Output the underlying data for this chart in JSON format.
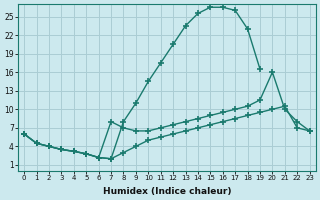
{
  "xlabel": "Humidex (Indice chaleur)",
  "ylabel": "",
  "bg_color": "#cce9ee",
  "line_color": "#1a7a6e",
  "grid_color": "#aacdd4",
  "xlim": [
    -0.5,
    23.5
  ],
  "ylim": [
    0,
    27
  ],
  "xticks": [
    0,
    1,
    2,
    3,
    4,
    5,
    6,
    7,
    8,
    9,
    10,
    11,
    12,
    13,
    14,
    15,
    16,
    17,
    18,
    19,
    20,
    21,
    22,
    23
  ],
  "yticks": [
    1,
    4,
    7,
    10,
    13,
    16,
    19,
    22,
    25
  ],
  "line1_x": [
    0,
    1,
    2,
    3,
    4,
    5,
    6,
    7,
    8,
    9,
    10,
    11,
    12,
    13,
    14,
    15,
    16,
    17,
    18,
    19,
    20,
    21,
    22,
    23
  ],
  "line1_y": [
    6.0,
    4.5,
    4.0,
    3.5,
    3.2,
    2.8,
    2.2,
    2.0,
    8.0,
    11.0,
    14.5,
    17.5,
    20.5,
    23.5,
    25.5,
    26.5,
    26.5,
    26.0,
    23.0,
    16.5,
    null,
    null,
    null,
    null
  ],
  "line2_x": [
    0,
    1,
    2,
    3,
    4,
    5,
    6,
    7,
    8,
    9,
    10,
    11,
    12,
    13,
    14,
    15,
    16,
    17,
    18,
    19,
    20,
    21,
    22,
    23
  ],
  "line2_y": [
    6.0,
    4.5,
    4.0,
    3.5,
    3.2,
    2.8,
    2.2,
    8.0,
    7.0,
    6.5,
    6.5,
    7.0,
    7.5,
    8.0,
    8.5,
    9.0,
    9.5,
    10.0,
    10.5,
    11.5,
    16.0,
    10.0,
    8.0,
    6.5
  ],
  "line3_x": [
    0,
    1,
    2,
    3,
    4,
    5,
    6,
    7,
    8,
    9,
    10,
    11,
    12,
    13,
    14,
    15,
    16,
    17,
    18,
    19,
    20,
    21,
    22,
    23
  ],
  "line3_y": [
    6.0,
    4.5,
    4.0,
    3.5,
    3.2,
    2.8,
    2.2,
    2.0,
    3.0,
    4.0,
    5.0,
    5.5,
    6.0,
    6.5,
    7.0,
    7.5,
    8.0,
    8.5,
    9.0,
    9.5,
    10.0,
    10.5,
    7.0,
    6.5
  ]
}
